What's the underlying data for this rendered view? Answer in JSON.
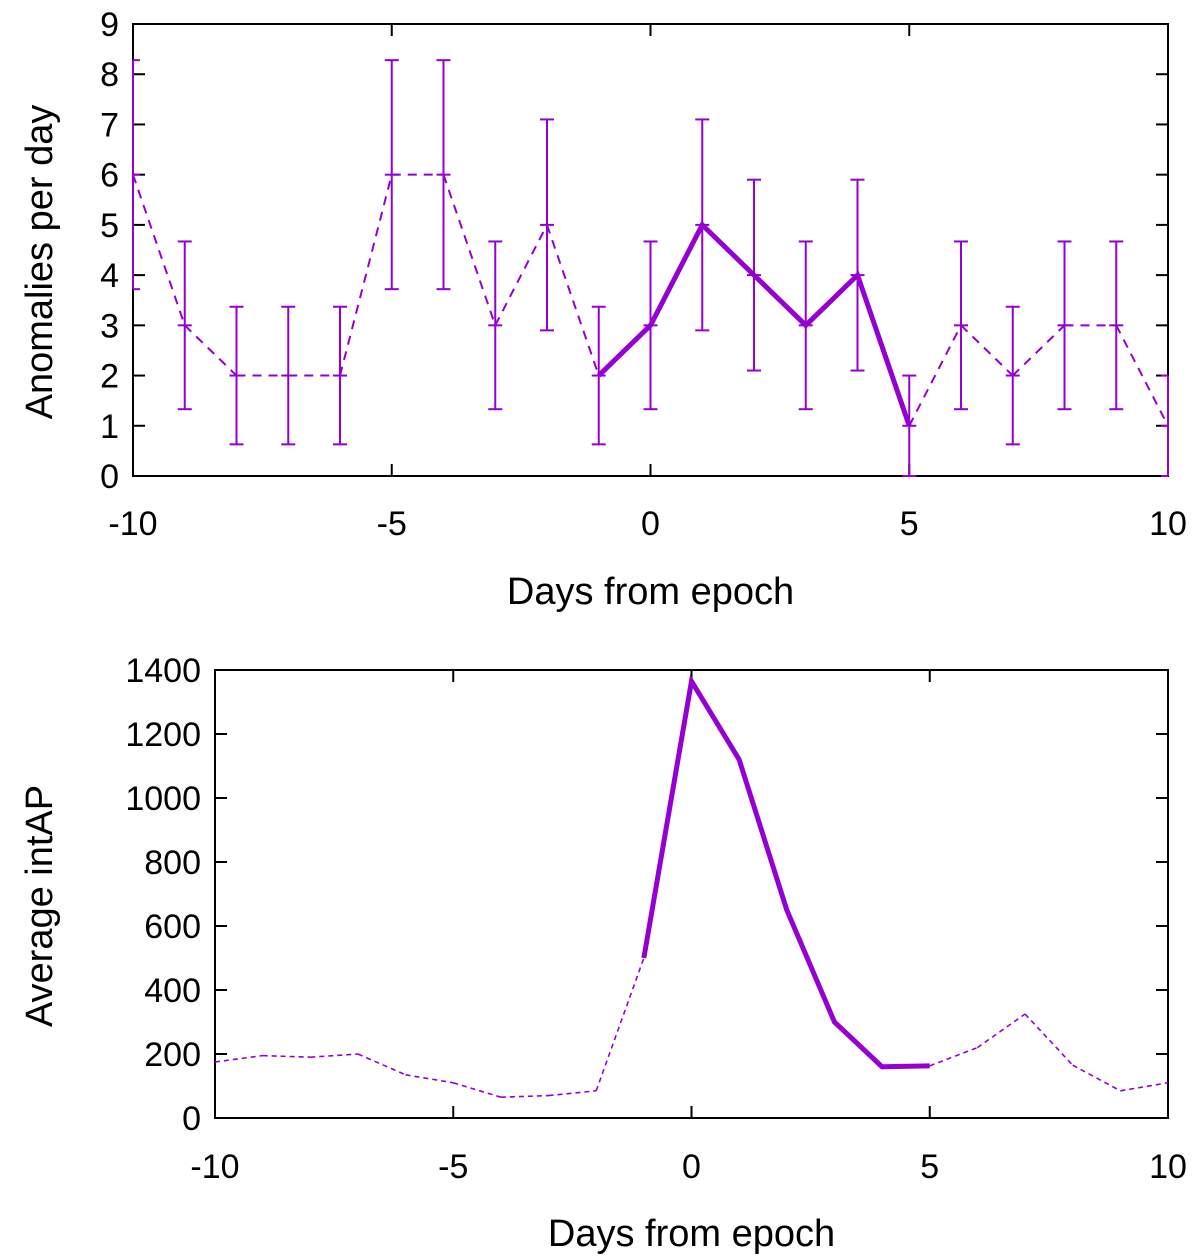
{
  "colors": {
    "series": "#9400d3",
    "axis": "#000000",
    "background": "#ffffff"
  },
  "chart_data": [
    {
      "type": "line",
      "title": "",
      "xlabel": "Days from epoch",
      "ylabel": "Anomalies per day",
      "xlim": [
        -10,
        10
      ],
      "ylim": [
        0,
        9
      ],
      "xticks": [
        -10,
        -5,
        0,
        5,
        10
      ],
      "xtick_labels": [
        "-10",
        "-5",
        "0",
        "5",
        "10"
      ],
      "yticks": [
        0,
        1,
        2,
        3,
        4,
        5,
        6,
        7,
        8,
        9
      ],
      "ytick_labels": [
        "0",
        "1",
        "2",
        "3",
        "4",
        "5",
        "6",
        "7",
        "8",
        "9"
      ],
      "grid": false,
      "series": [
        {
          "name": "anomalies",
          "x": [
            -10,
            -9,
            -8,
            -7,
            -6,
            -5,
            -4,
            -3,
            -2,
            -1,
            0,
            1,
            2,
            3,
            4,
            5,
            6,
            7,
            8,
            9,
            10
          ],
          "values": [
            6,
            3,
            2,
            2,
            2,
            6,
            6,
            3,
            5,
            2,
            3,
            5,
            4,
            3,
            4,
            1,
            3,
            2,
            3,
            3,
            1
          ],
          "error_low": [
            3.72,
            1.33,
            0.63,
            0.63,
            0.63,
            3.72,
            3.72,
            1.33,
            2.9,
            0.63,
            1.33,
            2.9,
            2.1,
            1.33,
            2.1,
            0,
            1.33,
            0.63,
            1.33,
            1.33,
            0
          ],
          "error_high": [
            8.28,
            4.67,
            3.37,
            3.37,
            3.37,
            8.28,
            8.28,
            4.67,
            7.1,
            3.37,
            4.67,
            7.1,
            5.9,
            4.67,
            5.9,
            2,
            4.67,
            3.37,
            4.67,
            4.67,
            2
          ],
          "highlight_range": [
            -1,
            5
          ]
        }
      ]
    },
    {
      "type": "line",
      "title": "",
      "xlabel": "Days from epoch",
      "ylabel": "Average intAP",
      "xlim": [
        -10,
        10
      ],
      "ylim": [
        0,
        1400
      ],
      "xticks": [
        -10,
        -5,
        0,
        5,
        10
      ],
      "xtick_labels": [
        "-10",
        "-5",
        "0",
        "5",
        "10"
      ],
      "yticks": [
        0,
        200,
        400,
        600,
        800,
        1000,
        1200,
        1400
      ],
      "ytick_labels": [
        "0",
        "200",
        "400",
        "600",
        "800",
        "1000",
        "1200",
        "1400"
      ],
      "grid": false,
      "series": [
        {
          "name": "intAP",
          "x": [
            -10,
            -9,
            -8,
            -7,
            -6,
            -5,
            -4,
            -3,
            -2,
            -1,
            0,
            1,
            2,
            3,
            4,
            5,
            6,
            7,
            8,
            9,
            10
          ],
          "values": [
            175,
            195,
            190,
            200,
            135,
            110,
            65,
            70,
            85,
            500,
            1365,
            1120,
            650,
            300,
            160,
            163,
            220,
            325,
            165,
            85,
            110
          ],
          "highlight_range": [
            -1,
            5
          ]
        }
      ]
    }
  ]
}
